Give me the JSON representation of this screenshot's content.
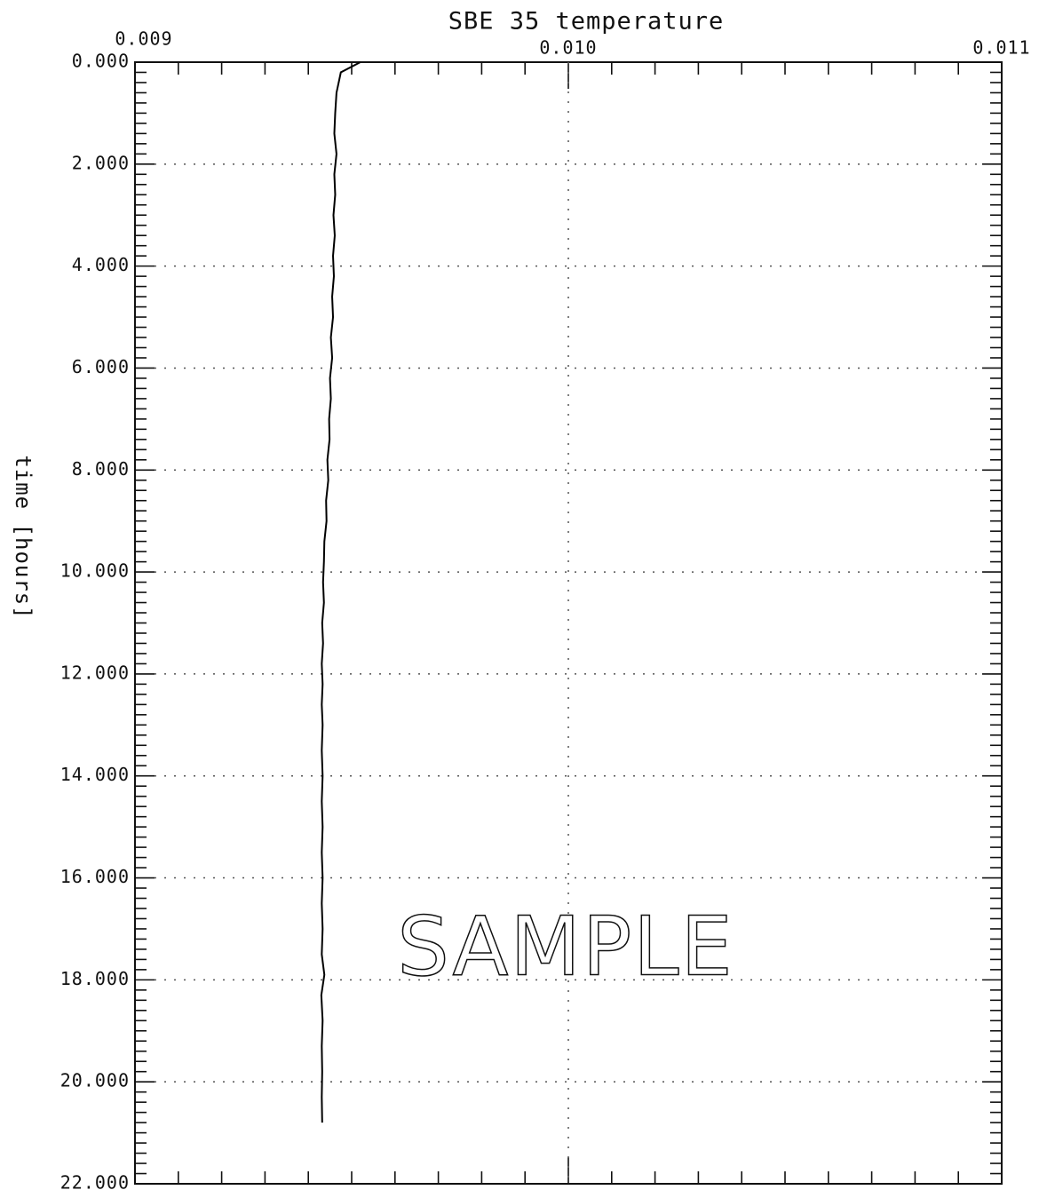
{
  "chart_data": {
    "type": "line",
    "title": "SBE 35 temperature",
    "y_label": "time [hours]",
    "annotation": "SAMPLE",
    "x": [
      0.00952,
      0.009475,
      0.009465,
      0.009462,
      0.00946,
      0.009465,
      0.00946,
      0.009462,
      0.009458,
      0.009461,
      0.009457,
      0.009459,
      0.009455,
      0.009457,
      0.009452,
      0.009455,
      0.00945,
      0.009452,
      0.009448,
      0.009449,
      0.009444,
      0.009446,
      0.009441,
      0.009442,
      0.009437,
      0.009436,
      0.009434,
      0.009436,
      0.009432,
      0.009434,
      0.009431,
      0.009433,
      0.009431,
      0.009433,
      0.009431,
      0.009433,
      0.009431,
      0.009433,
      0.009431,
      0.009433,
      0.009431,
      0.009433,
      0.009431,
      0.009437,
      0.00943,
      0.009433,
      0.009431,
      0.009432,
      0.009431,
      0.009432
    ],
    "values": [
      0,
      0.2,
      0.6,
      1.0,
      1.4,
      1.8,
      2.2,
      2.6,
      3.0,
      3.4,
      3.8,
      4.2,
      4.6,
      5.0,
      5.4,
      5.8,
      6.2,
      6.6,
      7.0,
      7.4,
      7.8,
      8.2,
      8.6,
      9.0,
      9.4,
      9.8,
      10.2,
      10.6,
      11.0,
      11.4,
      11.8,
      12.2,
      12.6,
      13.0,
      13.5,
      14.0,
      14.5,
      15.0,
      15.5,
      16.0,
      16.5,
      17.0,
      17.5,
      17.9,
      18.3,
      18.8,
      19.3,
      19.8,
      20.3,
      20.8
    ],
    "color": "#000000",
    "xlim": [
      0.009,
      0.011
    ],
    "xticks": [
      {
        "value": 0.009,
        "label": "0.009"
      },
      {
        "value": 0.01,
        "label": "0.010"
      },
      {
        "value": 0.011,
        "label": "0.011"
      }
    ],
    "x_minor_per_major": 10,
    "ylim": [
      0,
      22
    ],
    "y_inverted": true,
    "yticks": [
      {
        "value": 0,
        "label": "0.000"
      },
      {
        "value": 2,
        "label": "2.000"
      },
      {
        "value": 4,
        "label": "4.000"
      },
      {
        "value": 6,
        "label": "6.000"
      },
      {
        "value": 8,
        "label": "8.000"
      },
      {
        "value": 10,
        "label": "10.000"
      },
      {
        "value": 12,
        "label": "12.000"
      },
      {
        "value": 14,
        "label": "14.000"
      },
      {
        "value": 16,
        "label": "16.000"
      },
      {
        "value": 18,
        "label": "18.000"
      },
      {
        "value": 20,
        "label": "20.000"
      },
      {
        "value": 22,
        "label": "22.000"
      }
    ],
    "y_minor_per_major": 10,
    "grid": true
  }
}
